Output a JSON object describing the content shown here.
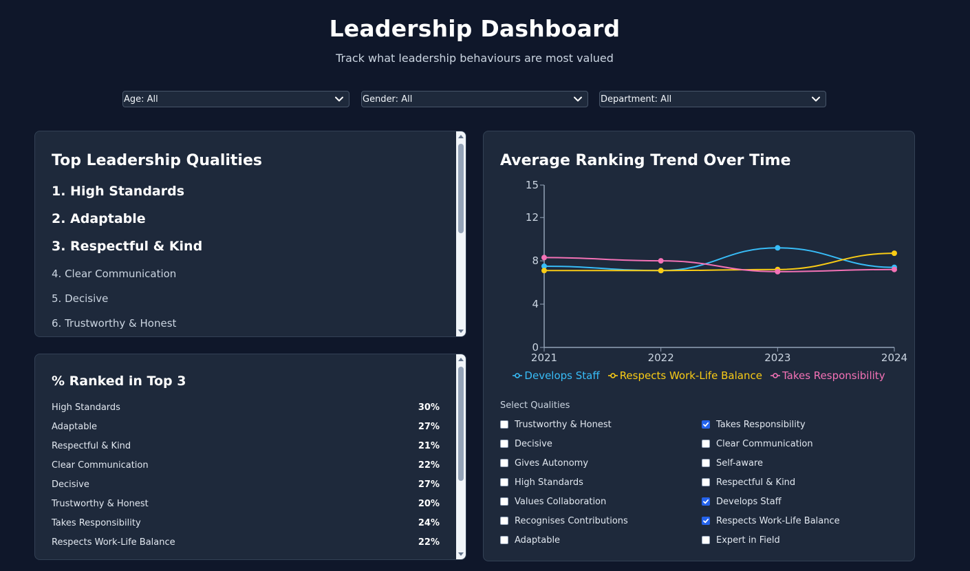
{
  "header": {
    "title": "Leadership Dashboard",
    "subtitle": "Track what leadership behaviours are most valued"
  },
  "filters": [
    {
      "label": "Age: All"
    },
    {
      "label": "Gender: All"
    },
    {
      "label": "Department: All"
    }
  ],
  "top_qualities": {
    "title": "Top Leadership Qualities",
    "items": [
      "1. High Standards",
      "2. Adaptable",
      "3. Respectful & Kind",
      "4. Clear Communication",
      "5. Decisive",
      "6. Trustworthy & Honest"
    ]
  },
  "ranked_top3": {
    "title": "% Ranked in Top 3",
    "rows": [
      {
        "name": "High Standards",
        "value": "30%"
      },
      {
        "name": "Adaptable",
        "value": "27%"
      },
      {
        "name": "Respectful & Kind",
        "value": "21%"
      },
      {
        "name": "Clear Communication",
        "value": "22%"
      },
      {
        "name": "Decisive",
        "value": "27%"
      },
      {
        "name": "Trustworthy & Honest",
        "value": "20%"
      },
      {
        "name": "Takes Responsibility",
        "value": "24%"
      },
      {
        "name": "Respects Work-Life Balance",
        "value": "22%"
      }
    ]
  },
  "trend": {
    "title": "Average Ranking Trend Over Time",
    "select_label": "Select Qualities",
    "qualities_left": [
      {
        "label": "Trustworthy & Honest",
        "checked": false
      },
      {
        "label": "Decisive",
        "checked": false
      },
      {
        "label": "Gives Autonomy",
        "checked": false
      },
      {
        "label": "High Standards",
        "checked": false
      },
      {
        "label": "Values Collaboration",
        "checked": false
      },
      {
        "label": "Recognises Contributions",
        "checked": false
      },
      {
        "label": "Adaptable",
        "checked": false
      }
    ],
    "qualities_right": [
      {
        "label": "Takes Responsibility",
        "checked": true
      },
      {
        "label": "Clear Communication",
        "checked": false
      },
      {
        "label": "Self-aware",
        "checked": false
      },
      {
        "label": "Respectful & Kind",
        "checked": false
      },
      {
        "label": "Develops Staff",
        "checked": true
      },
      {
        "label": "Respects Work-Life Balance",
        "checked": true
      },
      {
        "label": "Expert in Field",
        "checked": false
      }
    ]
  },
  "chart_data": {
    "type": "line",
    "title": "Average Ranking Trend Over Time",
    "x": [
      "2021",
      "2022",
      "2023",
      "2024"
    ],
    "y_ticks": [
      0,
      4,
      8,
      12,
      15
    ],
    "ylim": [
      0,
      15
    ],
    "grid": false,
    "legend": "bottom",
    "series": [
      {
        "name": "Develops Staff",
        "color": "#38bdf8",
        "values": [
          7.5,
          7.1,
          9.2,
          7.4
        ]
      },
      {
        "name": "Respects Work-Life Balance",
        "color": "#facc15",
        "values": [
          7.1,
          7.1,
          7.2,
          8.7
        ]
      },
      {
        "name": "Takes Responsibility",
        "color": "#f472b6",
        "values": [
          8.3,
          8.0,
          7.0,
          7.2
        ]
      }
    ]
  }
}
